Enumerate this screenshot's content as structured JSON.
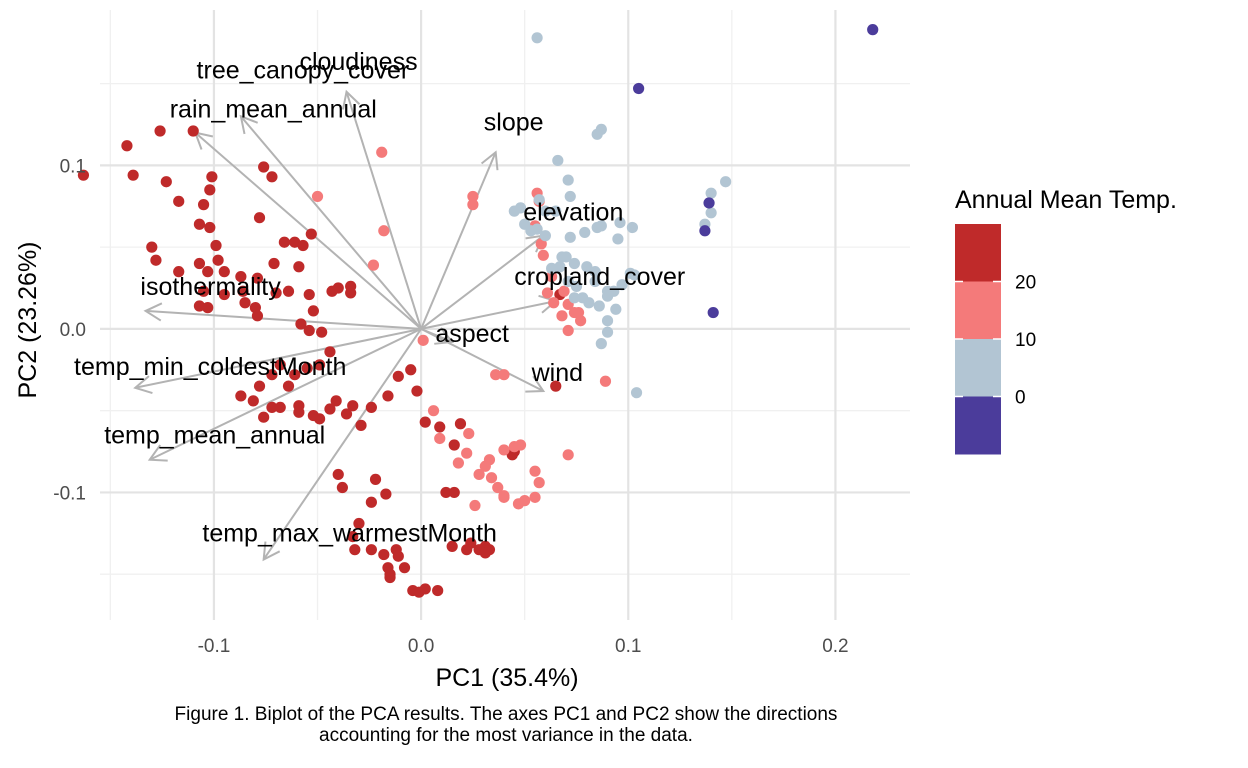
{
  "chart_data": {
    "type": "scatter",
    "subtype": "pca-biplot",
    "xlabel": "PC1 (35.4%)",
    "ylabel": "PC2 (23.26%)",
    "xlim": [
      -0.155,
      0.236
    ],
    "ylim": [
      -0.178,
      0.195
    ],
    "x_ticks": [
      -0.1,
      0.0,
      0.1,
      0.2
    ],
    "x_tick_labels": [
      "-0.1",
      "0.0",
      "0.1",
      "0.2"
    ],
    "y_ticks": [
      -0.1,
      0.0,
      0.1
    ],
    "y_tick_labels": [
      "-0.1",
      "0.0",
      "0.1"
    ],
    "grid": true,
    "legend": {
      "title": "Annual Mean Temp.",
      "placement": "right",
      "bins": [
        {
          "color": "#bf2a2a"
        },
        {
          "color": "#f47a7a"
        },
        {
          "color": "#b2c5d3"
        },
        {
          "color": "#4b3c9b"
        }
      ],
      "labels": [
        "20",
        "10",
        "0"
      ]
    },
    "loadings": [
      {
        "label": "cloudiness",
        "x": -0.036,
        "y": 0.145
      },
      {
        "label": "tree_canopy_cover",
        "x": -0.087,
        "y": 0.13
      },
      {
        "label": "rain_mean_annual",
        "x": -0.109,
        "y": 0.12
      },
      {
        "label": "slope",
        "x": 0.036,
        "y": 0.108
      },
      {
        "label": "elevation",
        "x": 0.059,
        "y": 0.057
      },
      {
        "label": "isothermality",
        "x": -0.133,
        "y": 0.011
      },
      {
        "label": "cropland_cover",
        "x": 0.065,
        "y": 0.017
      },
      {
        "label": "aspect",
        "x": 0.015,
        "y": -0.008
      },
      {
        "label": "temp_min_coldestMonth",
        "x": -0.138,
        "y": -0.036
      },
      {
        "label": "wind",
        "x": 0.059,
        "y": -0.038
      },
      {
        "label": "temp_mean_annual",
        "x": -0.131,
        "y": -0.08
      },
      {
        "label": "temp_max_warmestMonth",
        "x": -0.076,
        "y": -0.141
      }
    ],
    "series": [
      {
        "values": [
          [
            -0.163,
            0.094
          ],
          [
            -0.142,
            0.112
          ],
          [
            -0.139,
            0.094
          ],
          [
            -0.126,
            0.121
          ],
          [
            -0.11,
            0.121
          ],
          [
            -0.123,
            0.09
          ],
          [
            -0.105,
            0.076
          ],
          [
            -0.101,
            0.093
          ],
          [
            -0.117,
            0.078
          ],
          [
            -0.107,
            0.064
          ],
          [
            -0.102,
            0.062
          ],
          [
            -0.099,
            0.051
          ],
          [
            -0.102,
            0.085
          ],
          [
            -0.076,
            0.099
          ],
          [
            -0.072,
            0.093
          ],
          [
            -0.13,
            0.05
          ],
          [
            -0.128,
            0.042
          ],
          [
            -0.117,
            0.035
          ],
          [
            -0.107,
            0.04
          ],
          [
            -0.098,
            0.042
          ],
          [
            -0.095,
            0.035
          ],
          [
            -0.103,
            0.035
          ],
          [
            -0.087,
            0.032
          ],
          [
            -0.079,
            0.031
          ],
          [
            -0.071,
            0.04
          ],
          [
            -0.059,
            0.038
          ],
          [
            -0.066,
            0.053
          ],
          [
            -0.061,
            0.053
          ],
          [
            -0.057,
            0.051
          ],
          [
            -0.053,
            0.058
          ],
          [
            -0.078,
            0.068
          ],
          [
            -0.105,
            0.023
          ],
          [
            -0.107,
            0.014
          ],
          [
            -0.103,
            0.013
          ],
          [
            -0.095,
            0.021
          ],
          [
            -0.086,
            0.023
          ],
          [
            -0.085,
            0.016
          ],
          [
            -0.08,
            0.013
          ],
          [
            -0.079,
            0.008
          ],
          [
            -0.07,
            0.022
          ],
          [
            -0.064,
            0.023
          ],
          [
            -0.054,
            0.021
          ],
          [
            -0.043,
            0.023
          ],
          [
            -0.04,
            0.025
          ],
          [
            -0.034,
            0.026
          ],
          [
            -0.034,
            0.022
          ],
          [
            -0.052,
            0.011
          ],
          [
            -0.058,
            0.003
          ],
          [
            -0.054,
            -0.001
          ],
          [
            -0.048,
            -0.002
          ],
          [
            -0.044,
            -0.014
          ],
          [
            -0.049,
            -0.022
          ],
          [
            -0.055,
            -0.024
          ],
          [
            -0.061,
            -0.028
          ],
          [
            -0.068,
            -0.022
          ],
          [
            -0.072,
            -0.028
          ],
          [
            -0.064,
            -0.035
          ],
          [
            -0.078,
            -0.035
          ],
          [
            -0.087,
            -0.041
          ],
          [
            -0.081,
            -0.044
          ],
          [
            -0.072,
            -0.048
          ],
          [
            -0.068,
            -0.048
          ],
          [
            -0.076,
            -0.054
          ],
          [
            -0.059,
            -0.047
          ],
          [
            -0.059,
            -0.051
          ],
          [
            -0.052,
            -0.053
          ],
          [
            -0.049,
            -0.055
          ],
          [
            -0.044,
            -0.049
          ],
          [
            -0.041,
            -0.044
          ],
          [
            -0.033,
            -0.047
          ],
          [
            -0.036,
            -0.052
          ],
          [
            -0.029,
            -0.059
          ],
          [
            -0.024,
            -0.048
          ],
          [
            -0.016,
            -0.041
          ],
          [
            -0.011,
            -0.029
          ],
          [
            -0.005,
            -0.025
          ],
          [
            -0.002,
            -0.038
          ],
          [
            0.009,
            -0.06
          ],
          [
            0.002,
            -0.057
          ],
          [
            0.019,
            -0.058
          ],
          [
            0.016,
            -0.071
          ],
          [
            -0.04,
            -0.089
          ],
          [
            -0.038,
            -0.097
          ],
          [
            -0.022,
            -0.092
          ],
          [
            -0.017,
            -0.101
          ],
          [
            -0.024,
            -0.106
          ],
          [
            -0.03,
            -0.119
          ],
          [
            -0.033,
            -0.127
          ],
          [
            -0.032,
            -0.135
          ],
          [
            -0.024,
            -0.135
          ],
          [
            -0.018,
            -0.138
          ],
          [
            -0.012,
            -0.135
          ],
          [
            -0.011,
            -0.139
          ],
          [
            -0.016,
            -0.146
          ],
          [
            -0.015,
            -0.15
          ],
          [
            -0.008,
            -0.146
          ],
          [
            -0.004,
            -0.16
          ],
          [
            -0.001,
            -0.161
          ],
          [
            0.002,
            -0.159
          ],
          [
            0.008,
            -0.16
          ],
          [
            0.012,
            -0.1
          ],
          [
            0.016,
            -0.1
          ],
          [
            0.024,
            -0.131
          ],
          [
            0.031,
            -0.133
          ],
          [
            0.028,
            -0.135
          ],
          [
            0.033,
            -0.135
          ],
          [
            0.015,
            -0.133
          ],
          [
            0.022,
            -0.135
          ],
          [
            -0.015,
            -0.152
          ],
          [
            0.031,
            -0.137
          ],
          [
            0.045,
            -0.075
          ],
          [
            0.044,
            -0.077
          ],
          [
            0.065,
            -0.035
          ],
          [
            0.067,
            0.021
          ]
        ],
        "color": "#bf2a2a"
      },
      {
        "values": [
          [
            -0.019,
            0.108
          ],
          [
            -0.05,
            0.081
          ],
          [
            -0.018,
            0.06
          ],
          [
            -0.023,
            0.039
          ],
          [
            0.001,
            -0.007
          ],
          [
            0.006,
            -0.05
          ],
          [
            0.009,
            -0.067
          ],
          [
            0.023,
            -0.064
          ],
          [
            0.022,
            -0.076
          ],
          [
            0.018,
            -0.082
          ],
          [
            0.031,
            -0.084
          ],
          [
            0.028,
            -0.089
          ],
          [
            0.026,
            -0.108
          ],
          [
            0.033,
            -0.08
          ],
          [
            0.034,
            -0.091
          ],
          [
            0.037,
            -0.097
          ],
          [
            0.04,
            -0.103
          ],
          [
            0.04,
            -0.102
          ],
          [
            0.04,
            -0.074
          ],
          [
            0.045,
            -0.072
          ],
          [
            0.048,
            -0.071
          ],
          [
            0.055,
            -0.087
          ],
          [
            0.057,
            -0.094
          ],
          [
            0.047,
            -0.107
          ],
          [
            0.05,
            -0.105
          ],
          [
            0.055,
            -0.103
          ],
          [
            0.071,
            -0.077
          ],
          [
            0.089,
            -0.032
          ],
          [
            0.036,
            -0.028
          ],
          [
            0.04,
            -0.028
          ],
          [
            0.025,
            0.081
          ],
          [
            0.025,
            0.076
          ],
          [
            0.056,
            0.083
          ],
          [
            0.057,
            0.078
          ],
          [
            0.055,
            0.063
          ],
          [
            0.058,
            0.052
          ],
          [
            0.059,
            0.045
          ],
          [
            0.063,
            0.032
          ],
          [
            0.061,
            0.022
          ],
          [
            0.064,
            0.016
          ],
          [
            0.069,
            0.023
          ],
          [
            0.071,
            0.015
          ],
          [
            0.068,
            0.008
          ],
          [
            0.074,
            0.01
          ],
          [
            0.076,
            0.01
          ],
          [
            0.077,
            0.005
          ],
          [
            0.071,
            -0.001
          ]
        ],
        "color": "#f47a7a"
      },
      {
        "values": [
          [
            0.056,
            0.178
          ],
          [
            0.087,
            0.122
          ],
          [
            0.085,
            0.119
          ],
          [
            0.066,
            0.103
          ],
          [
            0.071,
            0.091
          ],
          [
            0.072,
            0.081
          ],
          [
            0.048,
            0.074
          ],
          [
            0.045,
            0.072
          ],
          [
            0.05,
            0.064
          ],
          [
            0.056,
            0.061
          ],
          [
            0.053,
            0.06
          ],
          [
            0.057,
            0.079
          ],
          [
            0.06,
            0.072
          ],
          [
            0.065,
            0.072
          ],
          [
            0.06,
            0.057
          ],
          [
            0.072,
            0.056
          ],
          [
            0.079,
            0.059
          ],
          [
            0.085,
            0.062
          ],
          [
            0.087,
            0.063
          ],
          [
            0.095,
            0.055
          ],
          [
            0.096,
            0.065
          ],
          [
            0.102,
            0.062
          ],
          [
            0.063,
            0.037
          ],
          [
            0.067,
            0.038
          ],
          [
            0.068,
            0.044
          ],
          [
            0.07,
            0.044
          ],
          [
            0.074,
            0.04
          ],
          [
            0.08,
            0.038
          ],
          [
            0.071,
            0.029
          ],
          [
            0.075,
            0.026
          ],
          [
            0.084,
            0.035
          ],
          [
            0.084,
            0.029
          ],
          [
            0.09,
            0.023
          ],
          [
            0.097,
            0.027
          ],
          [
            0.103,
            0.033
          ],
          [
            0.101,
            0.034
          ],
          [
            0.093,
            0.023
          ],
          [
            0.09,
            0.02
          ],
          [
            0.086,
            0.014
          ],
          [
            0.094,
            0.012
          ],
          [
            0.081,
            0.016
          ],
          [
            0.078,
            0.019
          ],
          [
            0.074,
            0.019
          ],
          [
            0.087,
            -0.009
          ],
          [
            0.09,
            -0.002
          ],
          [
            0.09,
            0.005
          ],
          [
            0.104,
            -0.039
          ],
          [
            0.147,
            0.09
          ],
          [
            0.14,
            0.083
          ],
          [
            0.14,
            0.071
          ],
          [
            0.137,
            0.064
          ]
        ],
        "color": "#b2c5d3"
      },
      {
        "values": [
          [
            0.218,
            0.183
          ],
          [
            0.105,
            0.147
          ],
          [
            0.139,
            0.077
          ],
          [
            0.137,
            0.06
          ],
          [
            0.141,
            0.01
          ]
        ],
        "color": "#4b3c9b"
      }
    ]
  },
  "caption": {
    "line1": "Figure 1. Biplot of the PCA results. The axes PC1 and PC2 show the directions",
    "line2": "accounting for the most variance in the data."
  }
}
